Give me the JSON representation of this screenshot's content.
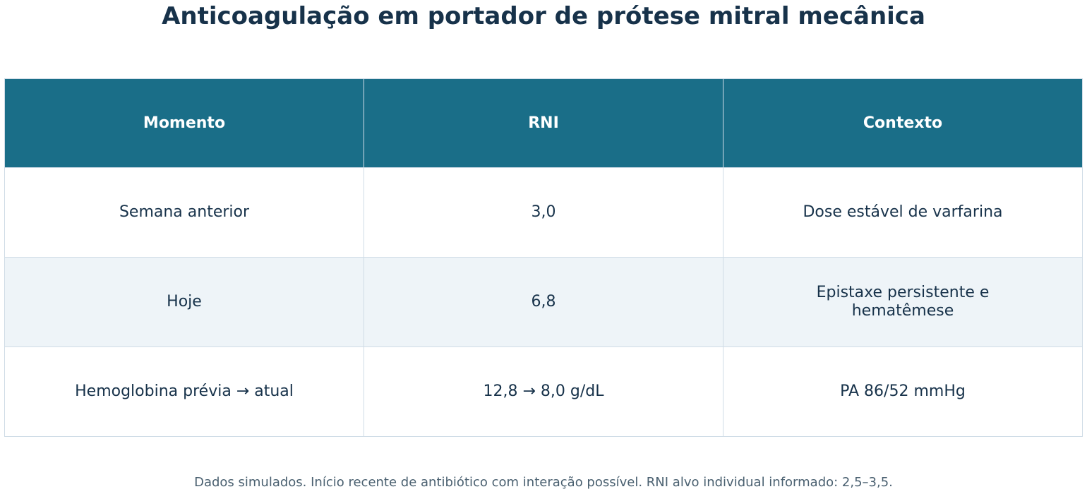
{
  "chart_data": {
    "type": "table",
    "title": "Anticoagulação em portador de prótese mitral mecânica",
    "columns": [
      "Momento",
      "RNI",
      "Contexto"
    ],
    "rows": [
      [
        "Semana anterior",
        "3,0",
        "Dose estável de varfarina"
      ],
      [
        "Hoje",
        "6,8",
        "Epistaxe persistente e hematêmese"
      ],
      [
        "Hemoglobina prévia → atual",
        "12,8 → 8,0 g/dL",
        "PA 86/52 mmHg"
      ]
    ],
    "footnote": "Dados simulados. Início recente de antibiótico com interação possível. RNI alvo individual informado: 2,5–3,5.",
    "colors": {
      "header_background": "#1a6e88",
      "header_text": "#ffffff",
      "body_text": "#17324a",
      "row_alt_background": "#eef4f8",
      "grid": "#cfdce6"
    }
  }
}
